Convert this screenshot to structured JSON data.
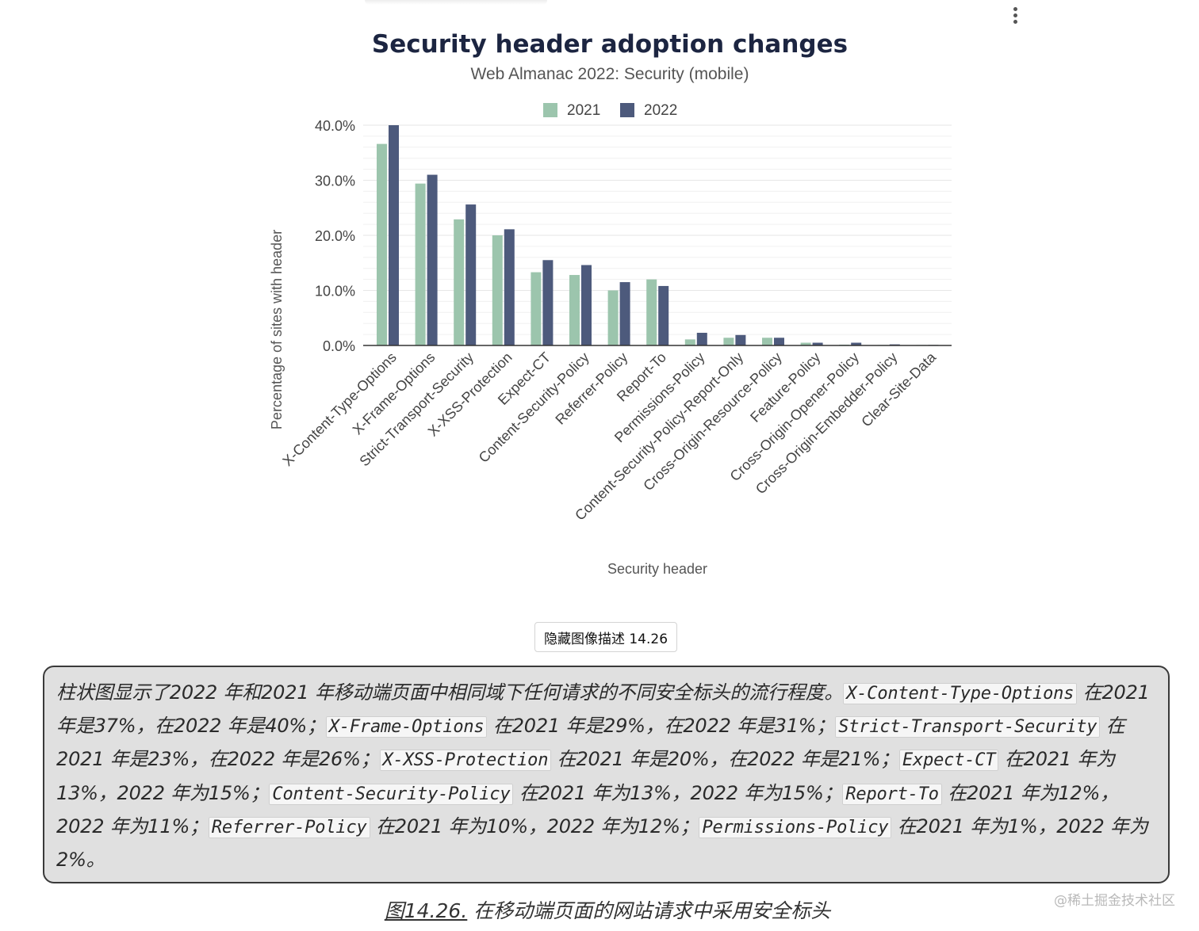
{
  "chart_data": {
    "type": "bar",
    "title": "Security header adoption changes",
    "subtitle": "Web Almanac 2022: Security (mobile)",
    "xlabel": "Security header",
    "ylabel": "Percentage of sites with header",
    "ylim": [
      0,
      40
    ],
    "yticks": [
      0,
      10,
      20,
      30,
      40
    ],
    "ytick_labels": [
      "0.0%",
      "10.0%",
      "20.0%",
      "30.0%",
      "40.0%"
    ],
    "grid": true,
    "legend_position": "top-center",
    "categories": [
      "X-Content-Type-Options",
      "X-Frame-Options",
      "Strict-Transport-Security",
      "X-XSS-Protection",
      "Expect-CT",
      "Content-Security-Policy",
      "Referrer-Policy",
      "Report-To",
      "Permissions-Policy",
      "Content-Security-Policy-Report-Only",
      "Cross-Origin-Resource-Policy",
      "Feature-Policy",
      "Cross-Origin-Opener-Policy",
      "Cross-Origin-Embedder-Policy",
      "Clear-Site-Data"
    ],
    "series": [
      {
        "name": "2021",
        "color": "#9cc5ad",
        "values": [
          36.6,
          29.4,
          22.9,
          20.0,
          13.3,
          12.8,
          10.0,
          12.0,
          1.1,
          1.4,
          1.4,
          0.5,
          0.15,
          0.05,
          0.05
        ]
      },
      {
        "name": "2022",
        "color": "#4d5a7c",
        "values": [
          40.0,
          31.0,
          25.6,
          21.1,
          15.5,
          14.6,
          11.5,
          10.8,
          2.3,
          1.9,
          1.4,
          0.5,
          0.5,
          0.2,
          0.1
        ]
      }
    ]
  },
  "toolbar": {
    "menu_icon": "kebab-menu-icon"
  },
  "description": {
    "toggle_label": "隐藏图像描述 14.26",
    "segments": [
      {
        "text": "柱状图显示了2022 年和2021 年移动端页面中相同域下任何请求的不同安全标头的流行程度。"
      },
      {
        "code": "X-Content-Type-Options"
      },
      {
        "text": " 在2021 年是37%，在2022 年是40%；"
      },
      {
        "code": "X-Frame-Options"
      },
      {
        "text": " 在2021 年是29%，在2022 年是31%；"
      },
      {
        "code": "Strict-Transport-Security"
      },
      {
        "text": " 在2021 年是23%，在2022 年是26%；"
      },
      {
        "code": "X-XSS-Protection"
      },
      {
        "text": " 在2021 年是20%，在2022 年是21%；"
      },
      {
        "code": "Expect-CT"
      },
      {
        "text": " 在2021 年为13%，2022 年为15%；"
      },
      {
        "code": "Content-Security-Policy"
      },
      {
        "text": " 在2021 年为13%，2022 年为15%；"
      },
      {
        "code": "Report-To"
      },
      {
        "text": " 在2021 年为12%，2022 年为11%；"
      },
      {
        "code": "Referrer-Policy"
      },
      {
        "text": " 在2021 年为10%，2022 年为12%；"
      },
      {
        "code": "Permissions-Policy"
      },
      {
        "text": " 在2021 年为1%，2022 年为2%。"
      }
    ]
  },
  "caption": {
    "link": "图14.26.",
    "text": " 在移动端页面的网站请求中采用安全标头"
  },
  "watermark": "@稀土掘金技术社区"
}
